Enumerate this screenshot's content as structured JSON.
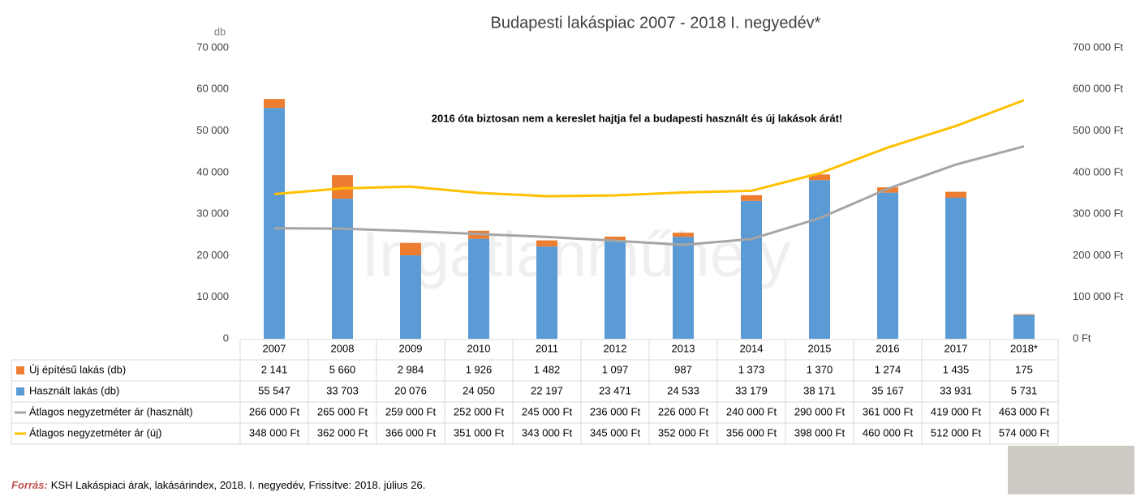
{
  "chart_data": {
    "type": "bar",
    "title": "Budapesti lakáspiac 2007 - 2018 I. negyedév*",
    "y_label": "db",
    "annotation": "2016 óta biztosan nem a kereslet hajtja fel a budapesti használt és új lakások árát!",
    "watermark": "Ingatlanműhely",
    "source_label": "Forrás:",
    "source": "KSH Lakáspiaci árak, lakásárindex, 2018. I. negyedév, Frissítve: 2018. július 26.",
    "categories": [
      "2007",
      "2008",
      "2009",
      "2010",
      "2011",
      "2012",
      "2013",
      "2014",
      "2015",
      "2016",
      "2017",
      "2018*"
    ],
    "stacked": true,
    "series": [
      {
        "name": "Új építésű lakás (db)",
        "type": "bar",
        "color": "#ed7d31",
        "values": [
          2141,
          5660,
          2984,
          1926,
          1482,
          1097,
          987,
          1373,
          1370,
          1274,
          1435,
          175
        ],
        "value_labels": [
          "2 141",
          "5 660",
          "2 984",
          "1 926",
          "1 482",
          "1 097",
          "987",
          "1 373",
          "1 370",
          "1 274",
          "1 435",
          "175"
        ]
      },
      {
        "name": "Használt lakás (db)",
        "type": "bar",
        "color": "#5b9bd5",
        "values": [
          55547,
          33703,
          20076,
          24050,
          22197,
          23471,
          24533,
          33179,
          38171,
          35167,
          33931,
          5731
        ],
        "value_labels": [
          "55 547",
          "33 703",
          "20 076",
          "24 050",
          "22 197",
          "23 471",
          "24 533",
          "33 179",
          "38 171",
          "35 167",
          "33 931",
          "5 731"
        ]
      },
      {
        "name": "Átlagos negyzetméter ár (használt)",
        "type": "line",
        "axis": "y2",
        "color": "#a5a5a5",
        "values": [
          266000,
          265000,
          259000,
          252000,
          245000,
          236000,
          226000,
          240000,
          290000,
          361000,
          419000,
          463000
        ],
        "value_labels": [
          "266 000 Ft",
          "265 000 Ft",
          "259 000 Ft",
          "252 000 Ft",
          "245 000 Ft",
          "236 000 Ft",
          "226 000 Ft",
          "240 000 Ft",
          "290 000 Ft",
          "361 000 Ft",
          "419 000 Ft",
          "463 000 Ft"
        ]
      },
      {
        "name": "Átlagos negyzetméter ár (új)",
        "type": "line",
        "axis": "y2",
        "color": "#ffc000",
        "values": [
          348000,
          362000,
          366000,
          351000,
          343000,
          345000,
          352000,
          356000,
          398000,
          460000,
          512000,
          574000
        ],
        "value_labels": [
          "348 000 Ft",
          "362 000 Ft",
          "366 000 Ft",
          "351 000 Ft",
          "343 000 Ft",
          "345 000 Ft",
          "352 000 Ft",
          "356 000 Ft",
          "398 000 Ft",
          "460 000 Ft",
          "512 000 Ft",
          "574 000 Ft"
        ]
      }
    ],
    "ylim": [
      0,
      70000
    ],
    "yticks": [
      0,
      {
        "value": 10000,
        "label": "10 000"
      },
      {
        "value": 20000,
        "label": "20 000"
      },
      {
        "value": 30000,
        "label": "30 000"
      },
      {
        "value": 40000,
        "label": "40 000"
      },
      {
        "value": 50000,
        "label": "50 000"
      },
      {
        "value": 60000,
        "label": "60 000"
      },
      {
        "value": 70000,
        "label": "70 000"
      }
    ],
    "y2lim": [
      0,
      700000
    ],
    "y2ticks": [
      {
        "value": 0,
        "label": "0 Ft"
      },
      {
        "value": 100000,
        "label": "100 000 Ft"
      },
      {
        "value": 200000,
        "label": "200 000 Ft"
      },
      {
        "value": 300000,
        "label": "300 000 Ft"
      },
      {
        "value": 400000,
        "label": "400 000 Ft"
      },
      {
        "value": 500000,
        "label": "500 000 Ft"
      },
      {
        "value": 600000,
        "label": "600 000 Ft"
      },
      {
        "value": 700000,
        "label": "700 000 Ft"
      }
    ]
  }
}
